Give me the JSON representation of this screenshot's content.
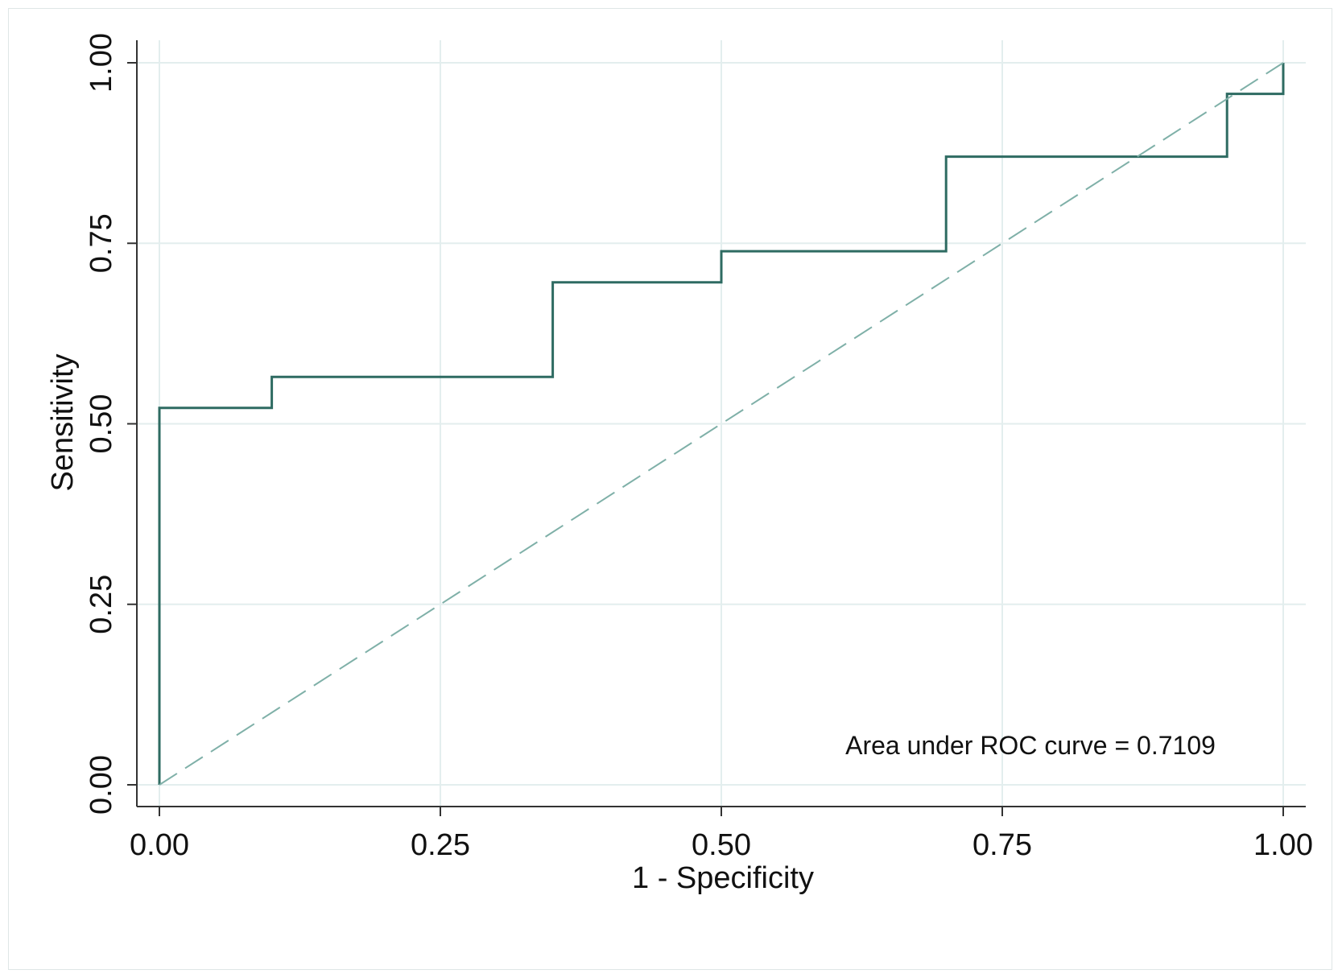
{
  "chart_data": {
    "type": "line",
    "xlabel": "1 - Specificity",
    "ylabel": "Sensitivity",
    "xlim": [
      0,
      1
    ],
    "ylim": [
      0,
      1
    ],
    "x_ticks": [
      "0.00",
      "0.25",
      "0.50",
      "0.75",
      "1.00"
    ],
    "y_ticks": [
      "0.00",
      "0.25",
      "0.50",
      "0.75",
      "1.00"
    ],
    "grid": true,
    "annotation": "Area under ROC curve = 0.7109",
    "series": [
      {
        "style": "step",
        "color": "#2e6b62",
        "x": [
          0,
          0,
          0.1,
          0.1,
          0.35,
          0.35,
          0.5,
          0.5,
          0.7,
          0.7,
          0.95,
          0.95,
          1,
          1
        ],
        "y": [
          0,
          0.522,
          0.522,
          0.565,
          0.565,
          0.696,
          0.696,
          0.739,
          0.739,
          0.87,
          0.87,
          0.957,
          0.957,
          1
        ]
      },
      {
        "style": "dashed",
        "color": "#7fb0a8",
        "x": [
          0,
          1
        ],
        "y": [
          0,
          1
        ]
      }
    ]
  }
}
